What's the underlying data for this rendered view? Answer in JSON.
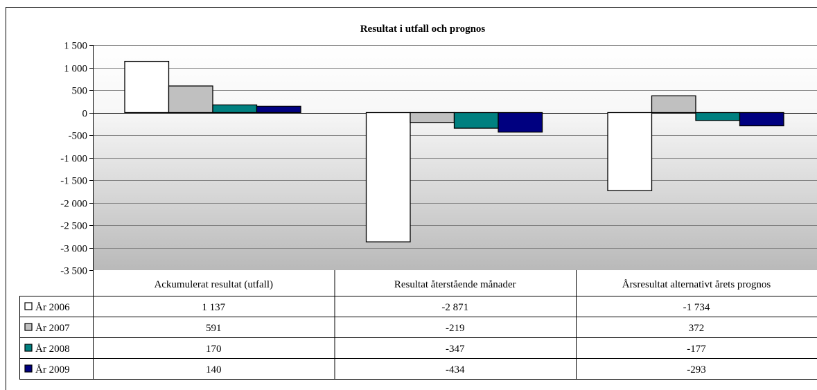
{
  "chart_data": {
    "type": "bar",
    "title": "Resultat i utfall och prognos",
    "categories": [
      "Ackumulerat resultat (utfall)",
      "Resultat återstående månader",
      "Årsresultat alternativt årets prognos"
    ],
    "series": [
      {
        "name": "År 2006",
        "color": "#ffffff",
        "values": [
          1137,
          -2871,
          -1734
        ],
        "labels": [
          "1 137",
          "-2 871",
          "-1 734"
        ]
      },
      {
        "name": "År 2007",
        "color": "#c0c0c0",
        "values": [
          591,
          -219,
          372
        ],
        "labels": [
          "591",
          "-219",
          "372"
        ]
      },
      {
        "name": "År 2008",
        "color": "#008080",
        "values": [
          170,
          -347,
          -177
        ],
        "labels": [
          "170",
          "-347",
          "-177"
        ]
      },
      {
        "name": "År 2009",
        "color": "#000080",
        "values": [
          140,
          -434,
          -293
        ],
        "labels": [
          "140",
          "-434",
          "-293"
        ]
      }
    ],
    "yticks": [
      1500,
      1000,
      500,
      0,
      -500,
      -1000,
      -1500,
      -2000,
      -2500,
      -3000,
      -3500
    ],
    "ytick_labels": [
      "1 500",
      "1 000",
      "500",
      "0",
      "-500",
      "-1 000",
      "-1 500",
      "-2 000",
      "-2 500",
      "-3 000",
      "-3 500"
    ],
    "ylim": [
      -3500,
      1500
    ],
    "grid": true,
    "legend": "data-table",
    "plot_background": "gradient-white-to-gray"
  }
}
